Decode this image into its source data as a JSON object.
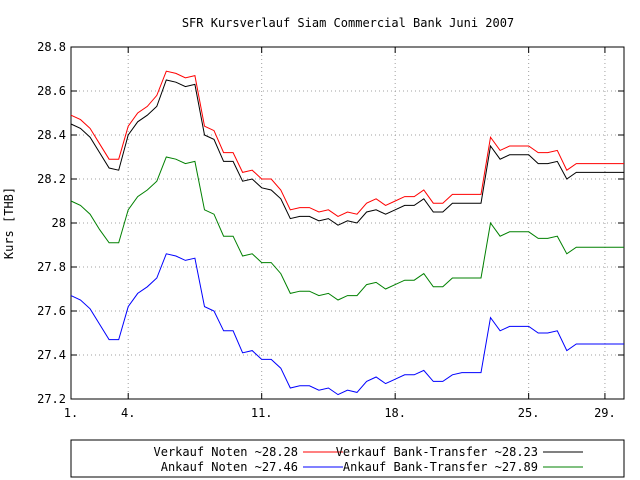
{
  "chart_data": {
    "type": "line",
    "title": "SFR Kursverlauf Siam Commercial Bank Juni 2007",
    "xlabel": "",
    "ylabel": "Kurs [THB]",
    "xlim": [
      1,
      30
    ],
    "ylim": [
      27.2,
      28.8
    ],
    "x_ticks": [
      {
        "value": 1,
        "label": "1."
      },
      {
        "value": 4,
        "label": "4."
      },
      {
        "value": 11,
        "label": "11."
      },
      {
        "value": 18,
        "label": "18."
      },
      {
        "value": 25,
        "label": "25."
      },
      {
        "value": 29,
        "label": "29."
      }
    ],
    "y_ticks": [
      {
        "value": 27.2,
        "label": "27.2"
      },
      {
        "value": 27.4,
        "label": "27.4"
      },
      {
        "value": 27.6,
        "label": "27.6"
      },
      {
        "value": 27.8,
        "label": "27.8"
      },
      {
        "value": 28.0,
        "label": "28"
      },
      {
        "value": 28.2,
        "label": "28.2"
      },
      {
        "value": 28.4,
        "label": "28.4"
      },
      {
        "value": 28.6,
        "label": "28.6"
      },
      {
        "value": 28.8,
        "label": "28.8"
      }
    ],
    "grid": true,
    "legend_position": "bottom",
    "x": [
      1,
      1.5,
      2,
      2.5,
      3,
      3.5,
      4,
      4.5,
      5,
      5.5,
      6,
      6.5,
      7,
      7.5,
      8,
      8.5,
      9,
      9.5,
      10,
      10.5,
      11,
      11.5,
      12,
      12.5,
      13,
      13.5,
      14,
      14.5,
      15,
      15.5,
      16,
      16.5,
      17,
      17.5,
      18,
      18.5,
      19,
      19.5,
      20,
      20.5,
      21,
      21.5,
      22,
      22.5,
      23,
      23.5,
      24,
      24.5,
      25,
      25.5,
      26,
      26.5,
      27,
      27.5,
      28,
      28.5,
      29,
      29.5,
      30
    ],
    "series": [
      {
        "name": "Verkauf Noten ~28.28",
        "color": "#ff0000",
        "values": [
          28.49,
          28.47,
          28.43,
          28.36,
          28.29,
          28.29,
          28.44,
          28.5,
          28.53,
          28.58,
          28.69,
          28.68,
          28.66,
          28.67,
          28.44,
          28.42,
          28.32,
          28.32,
          28.23,
          28.24,
          28.2,
          28.2,
          28.15,
          28.06,
          28.07,
          28.07,
          28.05,
          28.06,
          28.03,
          28.05,
          28.04,
          28.09,
          28.11,
          28.08,
          28.1,
          28.12,
          28.12,
          28.15,
          28.09,
          28.09,
          28.13,
          28.13,
          28.13,
          28.13,
          28.39,
          28.33,
          28.35,
          28.35,
          28.35,
          28.32,
          28.32,
          28.33,
          28.24,
          28.27,
          28.27,
          28.27,
          28.27,
          28.27,
          28.27
        ]
      },
      {
        "name": "Verkauf Bank-Transfer ~28.23",
        "color": "#000000",
        "values": [
          28.45,
          28.43,
          28.39,
          28.32,
          28.25,
          28.24,
          28.4,
          28.46,
          28.49,
          28.53,
          28.65,
          28.64,
          28.62,
          28.63,
          28.4,
          28.38,
          28.28,
          28.28,
          28.19,
          28.2,
          28.16,
          28.15,
          28.11,
          28.02,
          28.03,
          28.03,
          28.01,
          28.02,
          27.99,
          28.01,
          28.0,
          28.05,
          28.06,
          28.04,
          28.06,
          28.08,
          28.08,
          28.11,
          28.05,
          28.05,
          28.09,
          28.09,
          28.09,
          28.09,
          28.35,
          28.29,
          28.31,
          28.31,
          28.31,
          28.27,
          28.27,
          28.28,
          28.2,
          28.23,
          28.23,
          28.23,
          28.23,
          28.23,
          28.23
        ]
      },
      {
        "name": "Ankauf Noten ~27.46",
        "color": "#0000ff",
        "values": [
          27.67,
          27.65,
          27.61,
          27.54,
          27.47,
          27.47,
          27.62,
          27.68,
          27.71,
          27.75,
          27.86,
          27.85,
          27.83,
          27.84,
          27.62,
          27.6,
          27.51,
          27.51,
          27.41,
          27.42,
          27.38,
          27.38,
          27.34,
          27.25,
          27.26,
          27.26,
          27.24,
          27.25,
          27.22,
          27.24,
          27.23,
          27.28,
          27.3,
          27.27,
          27.29,
          27.31,
          27.31,
          27.33,
          27.28,
          27.28,
          27.31,
          27.32,
          27.32,
          27.32,
          27.57,
          27.51,
          27.53,
          27.53,
          27.53,
          27.5,
          27.5,
          27.51,
          27.42,
          27.45,
          27.45,
          27.45,
          27.45,
          27.45,
          27.45
        ]
      },
      {
        "name": "Ankauf Bank-Transfer ~27.89",
        "color": "#008000",
        "values": [
          28.1,
          28.08,
          28.04,
          27.97,
          27.91,
          27.91,
          28.06,
          28.12,
          28.15,
          28.19,
          28.3,
          28.29,
          28.27,
          28.28,
          28.06,
          28.04,
          27.94,
          27.94,
          27.85,
          27.86,
          27.82,
          27.82,
          27.77,
          27.68,
          27.69,
          27.69,
          27.67,
          27.68,
          27.65,
          27.67,
          27.67,
          27.72,
          27.73,
          27.7,
          27.72,
          27.74,
          27.74,
          27.77,
          27.71,
          27.71,
          27.75,
          27.75,
          27.75,
          27.75,
          28.0,
          27.94,
          27.96,
          27.96,
          27.96,
          27.93,
          27.93,
          27.94,
          27.86,
          27.89,
          27.89,
          27.89,
          27.89,
          27.89,
          27.89
        ]
      }
    ],
    "legend": {
      "rows": [
        [
          0,
          1
        ],
        [
          2,
          3
        ]
      ]
    }
  }
}
